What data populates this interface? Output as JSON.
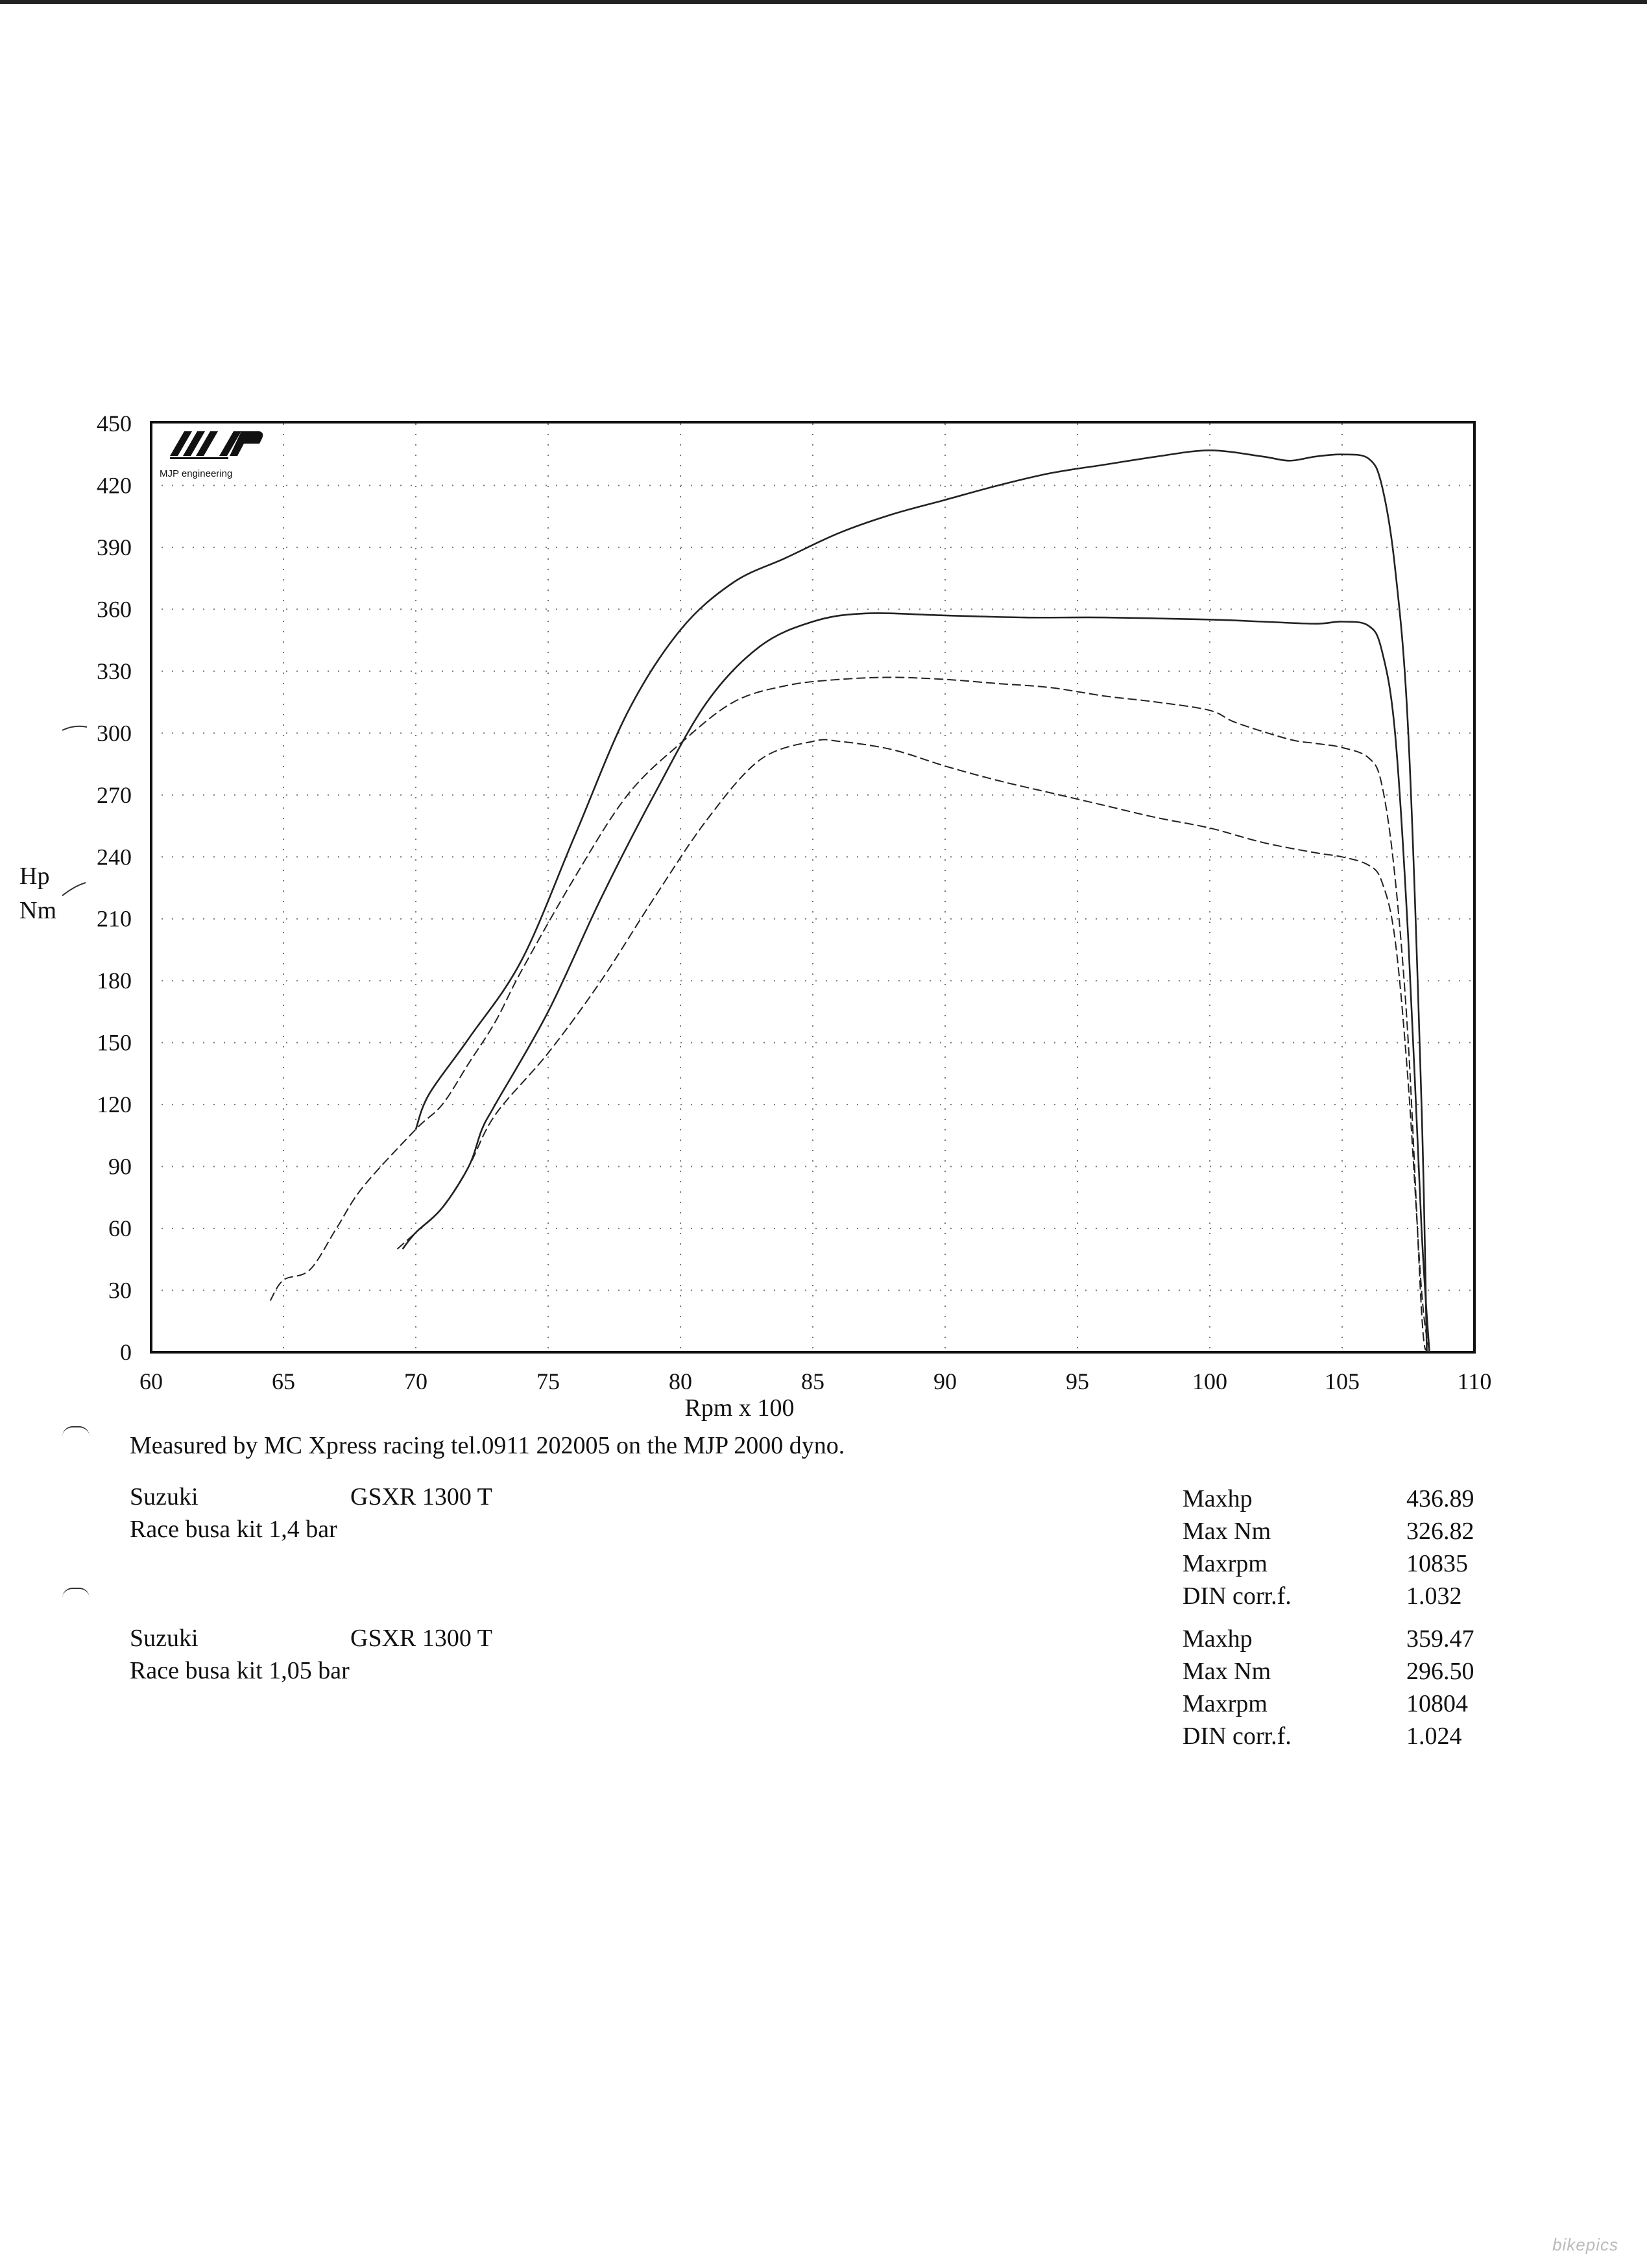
{
  "chart_data": {
    "type": "line",
    "title": "",
    "xlabel": "Rpm x 100",
    "ylabel_lines": [
      "Hp",
      "Nm"
    ],
    "xlim": [
      60,
      110
    ],
    "ylim": [
      0,
      450
    ],
    "x_ticks": [
      60,
      65,
      70,
      75,
      80,
      85,
      90,
      95,
      100,
      105,
      110
    ],
    "y_ticks": [
      0,
      30,
      60,
      90,
      120,
      150,
      180,
      210,
      240,
      270,
      300,
      330,
      360,
      390,
      420,
      450
    ],
    "grid": true,
    "series": [
      {
        "style": "solid",
        "points": [
          [
            70,
            108
          ],
          [
            70.5,
            125
          ],
          [
            72,
            152
          ],
          [
            74,
            190
          ],
          [
            76,
            250
          ],
          [
            78,
            310
          ],
          [
            80,
            350
          ],
          [
            82,
            373
          ],
          [
            84,
            385
          ],
          [
            86,
            397
          ],
          [
            88,
            406
          ],
          [
            90,
            413
          ],
          [
            92,
            420
          ],
          [
            94,
            426
          ],
          [
            96,
            430
          ],
          [
            98,
            434
          ],
          [
            100,
            437
          ],
          [
            102,
            434
          ],
          [
            103,
            432
          ],
          [
            104,
            434
          ],
          [
            105,
            435
          ],
          [
            106,
            433
          ],
          [
            106.5,
            420
          ],
          [
            107,
            380
          ],
          [
            107.5,
            300
          ],
          [
            108,
            120
          ],
          [
            108.2,
            0
          ]
        ]
      },
      {
        "style": "dashed",
        "points": [
          [
            64.5,
            25
          ],
          [
            65,
            35
          ],
          [
            66,
            40
          ],
          [
            67,
            60
          ],
          [
            68,
            80
          ],
          [
            70,
            108
          ],
          [
            71,
            120
          ],
          [
            72,
            140
          ],
          [
            73,
            160
          ],
          [
            74,
            185
          ],
          [
            76,
            230
          ],
          [
            78,
            270
          ],
          [
            80,
            295
          ],
          [
            82,
            315
          ],
          [
            84,
            323
          ],
          [
            86,
            326
          ],
          [
            88,
            327
          ],
          [
            90,
            326
          ],
          [
            92,
            324
          ],
          [
            94,
            322
          ],
          [
            96,
            318
          ],
          [
            98,
            315
          ],
          [
            100,
            311
          ],
          [
            101,
            305
          ],
          [
            103,
            297
          ],
          [
            104,
            295
          ],
          [
            105,
            293
          ],
          [
            106,
            288
          ],
          [
            106.5,
            275
          ],
          [
            107,
            230
          ],
          [
            107.5,
            150
          ],
          [
            108,
            20
          ],
          [
            108.2,
            0
          ]
        ]
      },
      {
        "style": "solid",
        "points": [
          [
            69.5,
            50
          ],
          [
            70,
            58
          ],
          [
            71,
            70
          ],
          [
            72,
            90
          ],
          [
            72.5,
            108
          ],
          [
            73,
            120
          ],
          [
            75,
            165
          ],
          [
            77,
            220
          ],
          [
            79,
            270
          ],
          [
            81,
            315
          ],
          [
            83,
            342
          ],
          [
            85,
            354
          ],
          [
            87,
            358
          ],
          [
            90,
            357
          ],
          [
            93,
            356
          ],
          [
            96,
            356
          ],
          [
            100,
            355
          ],
          [
            102,
            354
          ],
          [
            104,
            353
          ],
          [
            105,
            354
          ],
          [
            106,
            352
          ],
          [
            106.5,
            340
          ],
          [
            107,
            300
          ],
          [
            107.5,
            200
          ],
          [
            108,
            60
          ],
          [
            108.3,
            0
          ]
        ]
      },
      {
        "style": "dashed",
        "points": [
          [
            69.3,
            50
          ],
          [
            70,
            58
          ],
          [
            71,
            70
          ],
          [
            72,
            90
          ],
          [
            73,
            115
          ],
          [
            75,
            145
          ],
          [
            77,
            180
          ],
          [
            79,
            220
          ],
          [
            81,
            258
          ],
          [
            83,
            287
          ],
          [
            85,
            296
          ],
          [
            86,
            296
          ],
          [
            88,
            292
          ],
          [
            90,
            284
          ],
          [
            92,
            277
          ],
          [
            94,
            271
          ],
          [
            96,
            265
          ],
          [
            98,
            259
          ],
          [
            100,
            254
          ],
          [
            102,
            247
          ],
          [
            104,
            242
          ],
          [
            105,
            240
          ],
          [
            106,
            236
          ],
          [
            106.5,
            228
          ],
          [
            107,
            200
          ],
          [
            107.5,
            130
          ],
          [
            108,
            30
          ],
          [
            108.3,
            0
          ]
        ]
      }
    ]
  },
  "logo": {
    "text": "MJP engineering"
  },
  "footer": {
    "measured": "Measured by MC Xpress racing tel.0911 202005 on the MJP 2000 dyno.",
    "runs": [
      {
        "make": "Suzuki",
        "model": "GSXR 1300 T",
        "desc": "Race busa kit 1,4 bar",
        "stats": [
          {
            "label": "Maxhp",
            "value": "436.89"
          },
          {
            "label": "Max Nm",
            "value": "326.82"
          },
          {
            "label": "Maxrpm",
            "value": "10835"
          },
          {
            "label": "DIN corr.f.",
            "value": "1.032"
          }
        ]
      },
      {
        "make": "Suzuki",
        "model": "GSXR 1300 T",
        "desc": "Race busa kit 1,05 bar",
        "stats": [
          {
            "label": "Maxhp",
            "value": "359.47"
          },
          {
            "label": "Max Nm",
            "value": "296.50"
          },
          {
            "label": "Maxrpm",
            "value": "10804"
          },
          {
            "label": "DIN corr.f.",
            "value": "1.024"
          }
        ]
      }
    ]
  },
  "watermark": "bikepics"
}
